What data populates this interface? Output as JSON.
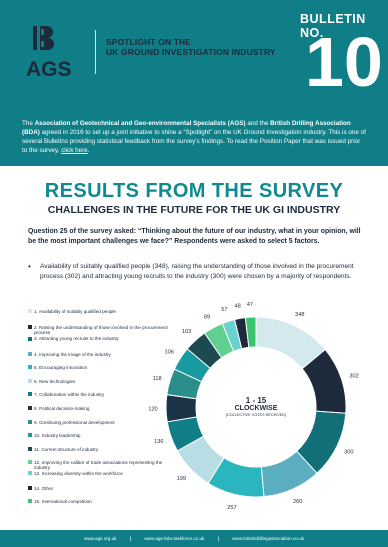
{
  "header": {
    "logo_text": "AGS",
    "spotlight_line1": "SPOTLIGHT ON THE",
    "spotlight_line2": "UK GROUND INVESTIGATION INDUSTRY",
    "bulletin_label": "BULLETIN NO.",
    "bulletin_number": "10"
  },
  "intro": {
    "part1": "The ",
    "ags_name": "Association of Geotechnical and Geo-environmental Specialists (AGS)",
    "part2": " and the ",
    "bda_name": "British Drilling Association (BDA)",
    "part3": " agreed in 2016 to set up a joint initiative to shine a “Spotlight” on the UK Ground Investigation industry. This is one of several Bulletins providing statistical feedback from the survey’s findings. To read the Position Paper that was issued prior to the survey, ",
    "link": "click here",
    "part4": "."
  },
  "main": {
    "title": "RESULTS FROM THE SURVEY",
    "subtitle": "CHALLENGES IN THE FUTURE FOR THE UK GI INDUSTRY",
    "question": "Question 25 of the survey asked: “Thinking about the future of our industry, what in your opinion, will be the most important challenges we face?” Respondents were asked to select 5 factors.",
    "bullet": "Availability of suitably qualified people (348), raising the understanding of those involved in the procurement process (302) and attracting young recruits to the industry (300) were chosen by a majority of respondents."
  },
  "chart_center": {
    "range": "1 - 15",
    "title": "CLOCKWISE",
    "note": "(COLLECTIVE VOTES RECEIVED)"
  },
  "chart_data": {
    "type": "pie",
    "title": "",
    "categories": [
      "1. Availability of suitably qualified people",
      "2. Raising the understanding of those involved in the procurement process",
      "3. Attracting young recruits to the industry",
      "4. Improving the image of the industry",
      "5. Encouraging innovation",
      "6. New technologies",
      "7. Collaboration within the industry",
      "8. Political decision-making",
      "9. Continuing professional development",
      "10. Industry leadership",
      "11. Current structure of industry",
      "12. Improving the calibre of trade associations representing the industry",
      "13. Increasing diversity within the workforce",
      "14. Other",
      "15. International competition"
    ],
    "values": [
      348,
      302,
      300,
      260,
      257,
      199,
      136,
      120,
      118,
      106,
      103,
      89,
      57,
      48,
      47
    ],
    "colors": [
      "#d4e9ee",
      "#1c2a3c",
      "#126f77",
      "#5aaec0",
      "#2bb6bf",
      "#b8dde4",
      "#0f7e86",
      "#1b3346",
      "#2a8f8a",
      "#179aa0",
      "#1b4a50",
      "#5fd08f",
      "#6bd3cf",
      "#1c2a3c",
      "#3cc36e"
    ],
    "legend_position": "left"
  },
  "footer": {
    "link1": "www.ags.org.uk",
    "link2": "www.ags-bda-taskforce.co.uk",
    "link3": "www.britishdrillingassociation.co.uk",
    "separator": "|"
  }
}
